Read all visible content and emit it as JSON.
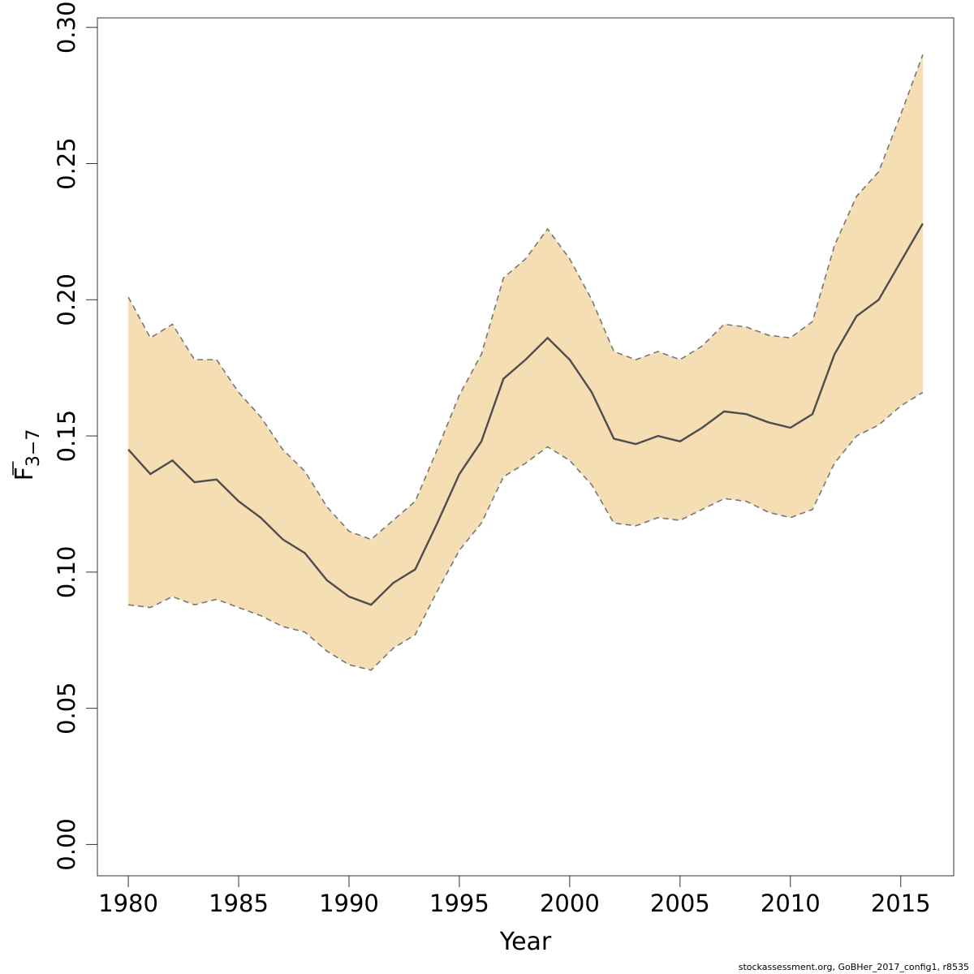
{
  "chart_data": {
    "type": "line",
    "title": "",
    "xlabel": "Year",
    "ylabel": {
      "main": "F",
      "sub": "3−7"
    },
    "xlim": [
      1978.6,
      2017.4
    ],
    "ylim": [
      -0.0115,
      0.3035
    ],
    "x_ticks": [
      1980,
      1985,
      1990,
      1995,
      2000,
      2005,
      2010,
      2015
    ],
    "y_ticks": [
      "0.00",
      "0.05",
      "0.10",
      "0.15",
      "0.20",
      "0.25",
      "0.30"
    ],
    "grid": false,
    "colors": {
      "band": "#F5DEB3",
      "line": "#4d4d4d",
      "bound": "#777777"
    },
    "x": [
      1980,
      1981,
      1982,
      1983,
      1984,
      1985,
      1986,
      1987,
      1988,
      1989,
      1990,
      1991,
      1992,
      1993,
      1994,
      1995,
      1996,
      1997,
      1998,
      1999,
      2000,
      2001,
      2002,
      2003,
      2004,
      2005,
      2006,
      2007,
      2008,
      2009,
      2010,
      2011,
      2012,
      2013,
      2014,
      2015,
      2016
    ],
    "series": [
      {
        "values": [
          0.145,
          0.136,
          0.141,
          0.133,
          0.134,
          0.126,
          0.12,
          0.112,
          0.107,
          0.097,
          0.091,
          0.088,
          0.096,
          0.101,
          0.118,
          0.136,
          0.148,
          0.171,
          0.178,
          0.186,
          0.178,
          0.166,
          0.149,
          0.147,
          0.15,
          0.148,
          0.153,
          0.159,
          0.158,
          0.155,
          0.153,
          0.158,
          0.18,
          0.194,
          0.2,
          0.214,
          0.228
        ]
      },
      {
        "values": [
          0.201,
          0.186,
          0.191,
          0.178,
          0.178,
          0.166,
          0.157,
          0.145,
          0.137,
          0.124,
          0.115,
          0.112,
          0.119,
          0.126,
          0.145,
          0.165,
          0.18,
          0.208,
          0.215,
          0.226,
          0.215,
          0.2,
          0.181,
          0.178,
          0.181,
          0.178,
          0.183,
          0.191,
          0.19,
          0.187,
          0.186,
          0.192,
          0.22,
          0.238,
          0.247,
          0.268,
          0.29
        ]
      },
      {
        "values": [
          0.088,
          0.087,
          0.091,
          0.088,
          0.09,
          0.087,
          0.084,
          0.08,
          0.078,
          0.071,
          0.066,
          0.064,
          0.072,
          0.077,
          0.093,
          0.108,
          0.118,
          0.135,
          0.14,
          0.146,
          0.141,
          0.132,
          0.118,
          0.117,
          0.12,
          0.119,
          0.123,
          0.127,
          0.126,
          0.122,
          0.12,
          0.123,
          0.14,
          0.15,
          0.154,
          0.161,
          0.166
        ]
      }
    ]
  },
  "footer": "stockassessment.org, GoBHer_2017_config1, r8535"
}
